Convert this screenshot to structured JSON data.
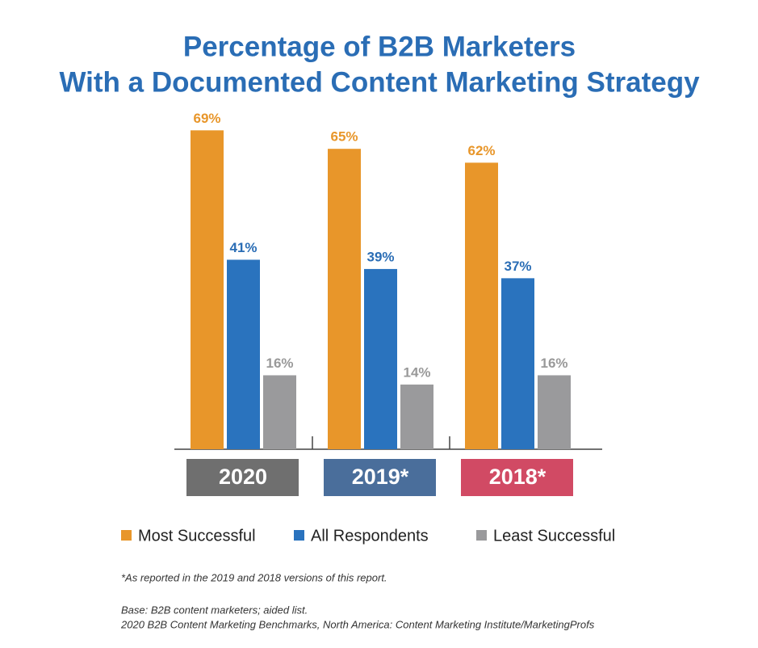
{
  "chart_data": {
    "type": "bar",
    "title": [
      "Percentage of B2B Marketers",
      "With a Documented Content Marketing Strategy"
    ],
    "categories": [
      "2020",
      "2019*",
      "2018*"
    ],
    "category_colors": [
      "#6f6f6f",
      "#4a6e9b",
      "#d14a64"
    ],
    "series": [
      {
        "name": "Most Successful",
        "color": "#e8962a",
        "values": [
          69,
          65,
          62
        ],
        "value_labels": [
          "69%",
          "65%",
          "62%"
        ]
      },
      {
        "name": "All Respondents",
        "color": "#2a73be",
        "values": [
          41,
          39,
          37
        ],
        "value_labels": [
          "41%",
          "39%",
          "37%"
        ]
      },
      {
        "name": "Least Successful",
        "color": "#9a9a9c",
        "values": [
          16,
          14,
          16
        ],
        "value_labels": [
          "16%",
          "14%",
          "16%"
        ]
      }
    ],
    "notes": [
      "*As reported in the 2019 and 2018 versions of this report.",
      "Base: B2B content marketers; aided list.",
      "2020 B2B Content Marketing Benchmarks, North America: Content Marketing Institute/MarketingProfs"
    ]
  }
}
